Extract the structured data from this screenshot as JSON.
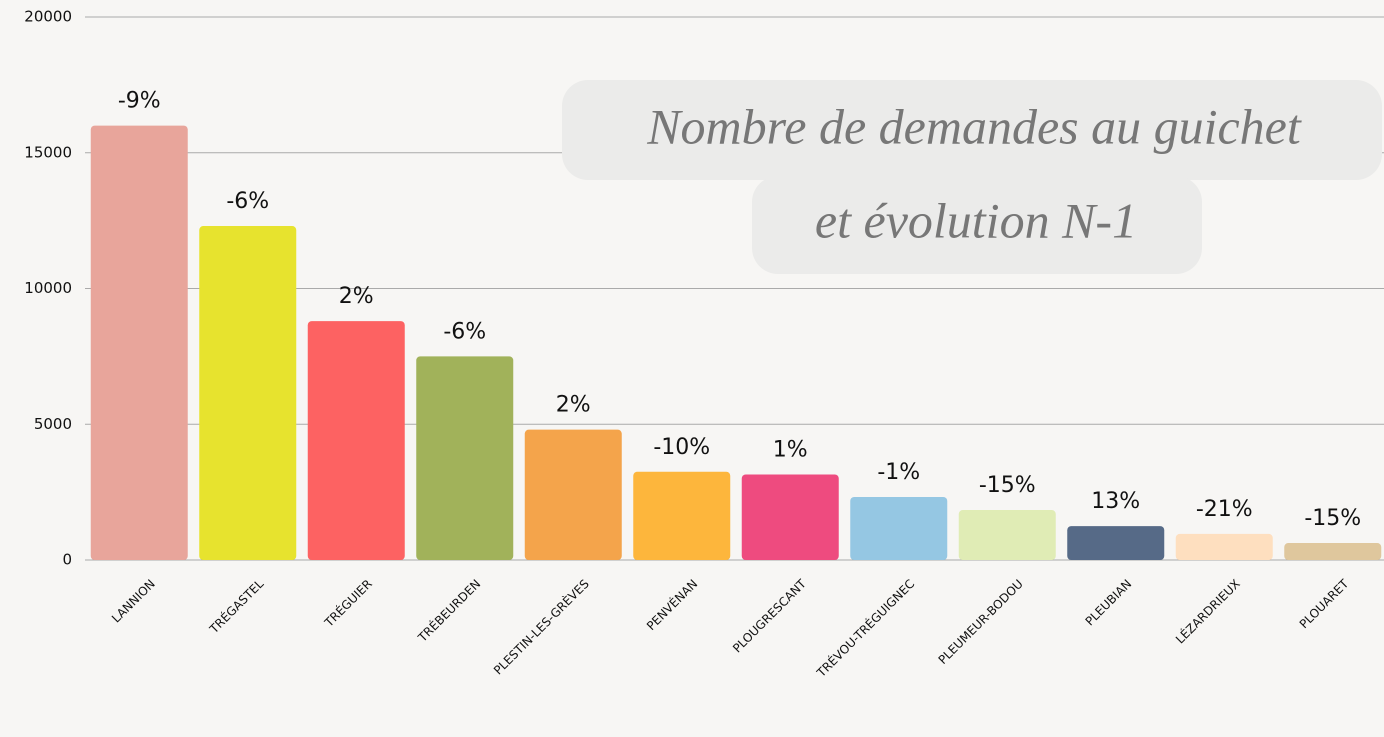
{
  "chart_data": {
    "type": "bar",
    "title": [
      "Nombre de demandes au guichet",
      "et évolution N-1"
    ],
    "categories": [
      "LANNION",
      "TRÉGASTEL",
      "TRÉGUIER",
      "TRÉBEURDEN",
      "PLESTIN-LES-GRÈVES",
      "PENVÉNAN",
      "PLOUGRESCANT",
      "TRÉVOU-TRÉGUIGNEC",
      "PLEUMEUR-BODOU",
      "PLEUBIAN",
      "LÉZARDRIEUX",
      "PLOUARET"
    ],
    "values": [
      16000,
      12300,
      8800,
      7500,
      4800,
      3250,
      3150,
      2320,
      1840,
      1250,
      960,
      625
    ],
    "annotations": [
      "-9%",
      "-6%",
      "2%",
      "-6%",
      "2%",
      "-10%",
      "1%",
      "-1%",
      "-15%",
      "13%",
      "-21%",
      "-15%"
    ],
    "colors": [
      "#e8a59b",
      "#e7e32e",
      "#fd6262",
      "#a1b25a",
      "#f4a44b",
      "#fdb63c",
      "#ee4b7f",
      "#95c7e3",
      "#e0ecb5",
      "#566a87",
      "#fedfbf",
      "#dfc79d"
    ],
    "ylim": [
      0,
      20000
    ],
    "yticks": [
      0,
      5000,
      10000,
      15000,
      20000
    ],
    "grid": true
  }
}
